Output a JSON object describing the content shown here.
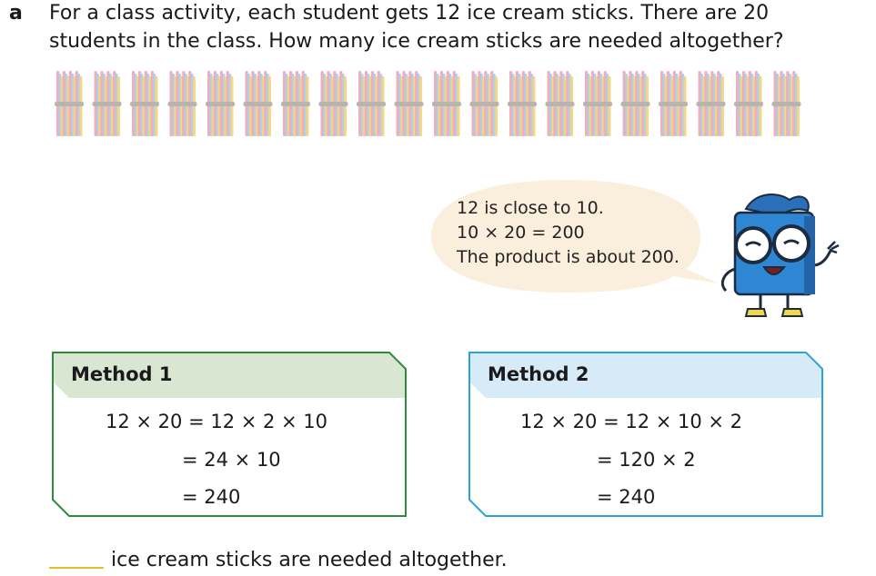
{
  "question": {
    "label": "a",
    "lines": [
      "For a class activity, each student gets 12 ice cream sticks. There are 20",
      "students in the class. How many ice cream sticks are needed altogether?"
    ]
  },
  "bundles": {
    "count": 20
  },
  "speech_bubble": {
    "lines": [
      "12 is close to 10.",
      "10 × 20 = 200",
      "The product is about 200."
    ]
  },
  "method1": {
    "title": "Method 1",
    "lines": [
      "12 × 20 = 12 × 2 × 10",
      "= 24 × 10",
      "= 240"
    ],
    "border_color": "#2e8b3e",
    "header_color": "#d8e6d2"
  },
  "method2": {
    "title": "Method 2",
    "lines": [
      "12 × 20 = 12 × 10 × 2",
      "= 120 × 2",
      "= 240"
    ],
    "border_color": "#2aa4d4",
    "header_color": "#d6ebf7"
  },
  "answer": {
    "text": "ice cream sticks are needed altogether."
  },
  "colors": {
    "stick_colors": [
      "#f5a3b5",
      "#a9cbe8",
      "#f3d37a",
      "#f5a3b5",
      "#a9cbe8",
      "#f3d37a"
    ],
    "bubble_fill": "#faeedd",
    "mascot_body": "#2f86d2"
  }
}
